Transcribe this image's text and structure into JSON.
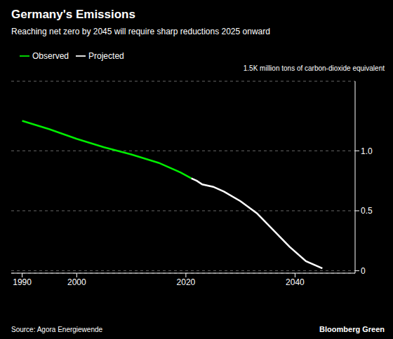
{
  "chart_data": {
    "type": "line",
    "title": "Germany's Emissions",
    "subtitle": "Reaching net zero by 2045 will require sharp reductions 2025 onward",
    "ylabel": "1.5K million tons of carbon-dioxide equivalent",
    "annotations": [
      "Source: Agora Energiewende",
      "Bloomberg Green"
    ],
    "series": [
      {
        "name": "Observed",
        "color": "#00ee00",
        "x": [
          1990,
          1995,
          2000,
          2005,
          2010,
          2015,
          2019,
          2021
        ],
        "values": [
          1.25,
          1.18,
          1.1,
          1.03,
          0.97,
          0.9,
          0.82,
          0.77
        ]
      },
      {
        "name": "Projected",
        "color": "#ffffff",
        "x": [
          2021,
          2022,
          2023,
          2025,
          2027,
          2030,
          2033,
          2036,
          2039,
          2042,
          2045
        ],
        "values": [
          0.77,
          0.75,
          0.72,
          0.7,
          0.66,
          0.58,
          0.48,
          0.34,
          0.2,
          0.08,
          0.02
        ]
      }
    ],
    "xlim": [
      1988,
      2051
    ],
    "ylim": [
      -0.02,
      1.58
    ],
    "xticks": [
      1990,
      2000,
      2020,
      2040
    ],
    "yticks": [
      0,
      0.5,
      {
        "value": 1,
        "label": "1.0"
      }
    ],
    "grid": true,
    "legend": "upper left"
  }
}
